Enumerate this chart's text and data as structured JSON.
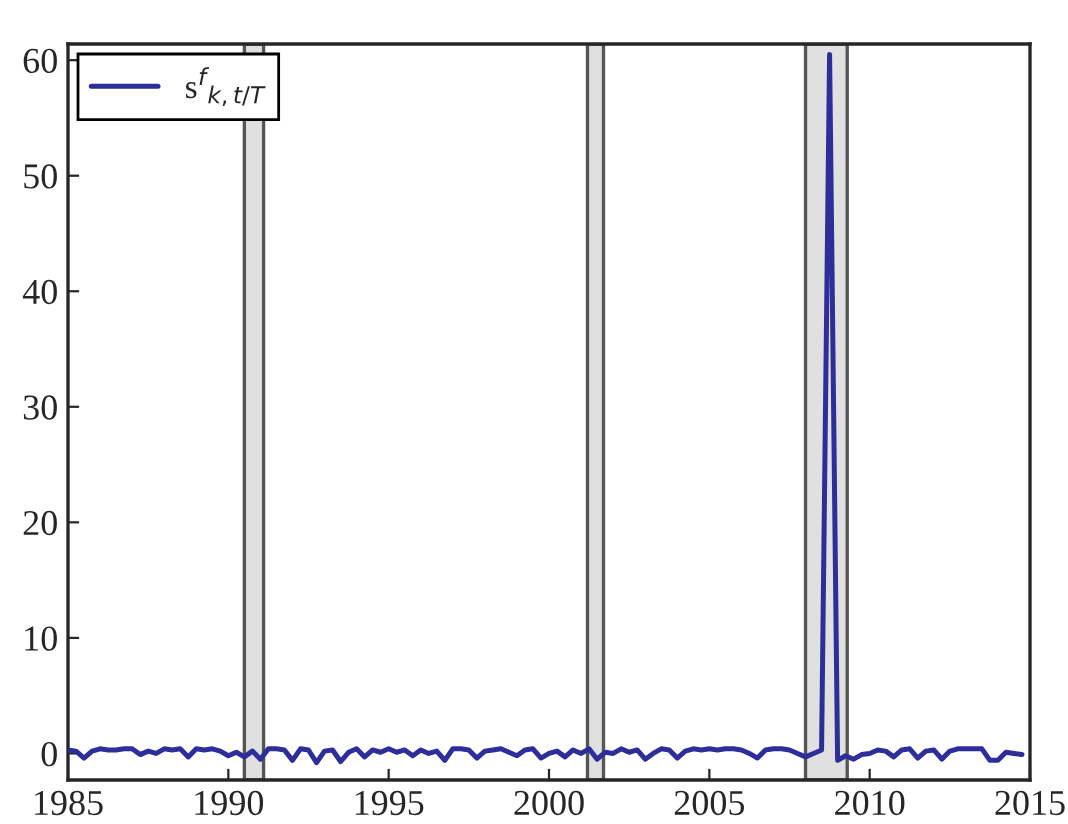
{
  "chart_data": {
    "type": "line",
    "x": [
      1985.0,
      1985.25,
      1985.5,
      1985.75,
      1986.0,
      1986.25,
      1986.5,
      1986.75,
      1987.0,
      1987.25,
      1987.5,
      1987.75,
      1988.0,
      1988.25,
      1988.5,
      1988.75,
      1989.0,
      1989.25,
      1989.5,
      1989.75,
      1990.0,
      1990.25,
      1990.5,
      1990.75,
      1991.0,
      1991.25,
      1991.5,
      1991.75,
      1992.0,
      1992.25,
      1992.5,
      1992.75,
      1993.0,
      1993.25,
      1993.5,
      1993.75,
      1994.0,
      1994.25,
      1994.5,
      1994.75,
      1995.0,
      1995.25,
      1995.5,
      1995.75,
      1996.0,
      1996.25,
      1996.5,
      1996.75,
      1997.0,
      1997.25,
      1997.5,
      1997.75,
      1998.0,
      1998.25,
      1998.5,
      1998.75,
      1999.0,
      1999.25,
      1999.5,
      1999.75,
      2000.0,
      2000.25,
      2000.5,
      2000.75,
      2001.0,
      2001.25,
      2001.5,
      2001.75,
      2002.0,
      2002.25,
      2002.5,
      2002.75,
      2003.0,
      2003.25,
      2003.5,
      2003.75,
      2004.0,
      2004.25,
      2004.5,
      2004.75,
      2005.0,
      2005.25,
      2005.5,
      2005.75,
      2006.0,
      2006.25,
      2006.5,
      2006.75,
      2007.0,
      2007.25,
      2007.5,
      2007.75,
      2008.0,
      2008.25,
      2008.5,
      2008.75,
      2009.0,
      2009.25,
      2009.5,
      2009.75,
      2010.0,
      2010.25,
      2010.5,
      2010.75,
      2011.0,
      2011.25,
      2011.5,
      2011.75,
      2012.0,
      2012.25,
      2012.5,
      2012.75,
      2013.0,
      2013.25,
      2013.5,
      2013.75,
      2014.0,
      2014.25,
      2014.5,
      2014.75
    ],
    "series": [
      {
        "name": "s$^{f}$$_{k,t/T}$",
        "color": "#2e2e9a",
        "values": [
          0.3,
          0.2,
          -0.4,
          0.2,
          0.4,
          0.3,
          0.3,
          0.4,
          0.4,
          -0.1,
          0.2,
          0.0,
          0.4,
          0.3,
          0.4,
          -0.3,
          0.4,
          0.3,
          0.4,
          0.2,
          -0.2,
          0.1,
          -0.3,
          0.2,
          -0.5,
          0.4,
          0.4,
          0.3,
          -0.6,
          0.4,
          0.3,
          -0.8,
          0.2,
          0.3,
          -0.7,
          0.1,
          0.4,
          -0.3,
          0.3,
          0.1,
          0.4,
          0.1,
          0.3,
          -0.2,
          0.3,
          0.0,
          0.2,
          -0.6,
          0.4,
          0.4,
          0.3,
          -0.4,
          0.2,
          0.3,
          0.4,
          0.1,
          -0.2,
          0.3,
          0.4,
          -0.4,
          0.0,
          0.2,
          -0.3,
          0.3,
          0.0,
          0.4,
          -0.5,
          0.1,
          0.0,
          0.4,
          0.1,
          0.3,
          -0.5,
          0.0,
          0.4,
          0.3,
          -0.4,
          0.2,
          0.4,
          0.3,
          0.4,
          0.3,
          0.4,
          0.4,
          0.3,
          0.0,
          -0.4,
          0.3,
          0.4,
          0.4,
          0.3,
          0.0,
          -0.3,
          0.0,
          0.3,
          60.5,
          -0.6,
          -0.2,
          -0.5,
          -0.1,
          0.0,
          0.3,
          0.2,
          -0.3,
          0.3,
          0.4,
          -0.4,
          0.2,
          0.3,
          -0.5,
          0.2,
          0.4,
          0.4,
          0.4,
          0.4,
          -0.6,
          -0.6,
          0.1,
          0.0,
          -0.1
        ]
      }
    ],
    "bands": [
      {
        "axis": "x",
        "from": 1990.5,
        "to": 1991.1,
        "color": "#e0e0e0"
      },
      {
        "axis": "x",
        "from": 2001.2,
        "to": 2001.7,
        "color": "#e0e0e0"
      },
      {
        "axis": "x",
        "from": 2008.0,
        "to": 2009.3,
        "color": "#e0e0e0"
      }
    ],
    "xlim": [
      1985,
      2015
    ],
    "xticks": [
      1985,
      1990,
      1995,
      2000,
      2005,
      2010,
      2015
    ],
    "ylim": [
      -2.3,
      61.4
    ],
    "yticks": [
      0,
      10,
      20,
      30,
      40,
      50,
      60
    ],
    "grid": false,
    "legend": "top left",
    "line_style": "solid",
    "marker": "none"
  }
}
